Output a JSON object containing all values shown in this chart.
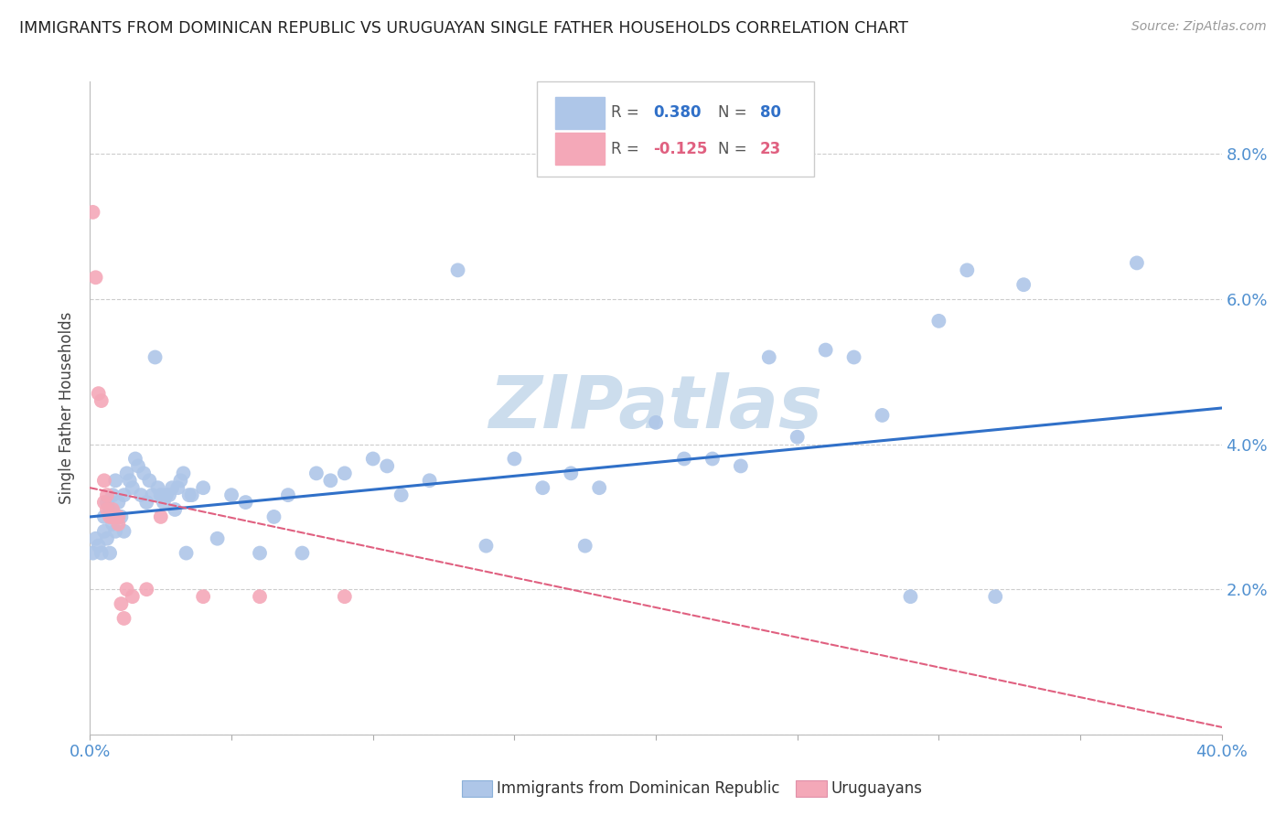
{
  "title": "IMMIGRANTS FROM DOMINICAN REPUBLIC VS URUGUAYAN SINGLE FATHER HOUSEHOLDS CORRELATION CHART",
  "source": "Source: ZipAtlas.com",
  "ylabel": "Single Father Households",
  "xlim": [
    0.0,
    0.4
  ],
  "ylim": [
    0.0,
    0.09
  ],
  "yticks": [
    0.0,
    0.02,
    0.04,
    0.06,
    0.08
  ],
  "ytick_labels": [
    "",
    "2.0%",
    "4.0%",
    "6.0%",
    "8.0%"
  ],
  "blue_R": "0.380",
  "blue_N": "80",
  "pink_R": "-0.125",
  "pink_N": "23",
  "blue_color": "#aec6e8",
  "pink_color": "#f4a8b8",
  "blue_line_color": "#3070c8",
  "pink_line_color": "#e06080",
  "grid_color": "#cccccc",
  "axis_color": "#5090d0",
  "watermark_color": "#ccdded",
  "blue_scatter": [
    [
      0.001,
      0.025
    ],
    [
      0.002,
      0.027
    ],
    [
      0.003,
      0.026
    ],
    [
      0.004,
      0.025
    ],
    [
      0.005,
      0.028
    ],
    [
      0.005,
      0.03
    ],
    [
      0.006,
      0.027
    ],
    [
      0.006,
      0.032
    ],
    [
      0.007,
      0.031
    ],
    [
      0.007,
      0.025
    ],
    [
      0.008,
      0.029
    ],
    [
      0.008,
      0.033
    ],
    [
      0.009,
      0.028
    ],
    [
      0.009,
      0.035
    ],
    [
      0.01,
      0.032
    ],
    [
      0.01,
      0.03
    ],
    [
      0.011,
      0.03
    ],
    [
      0.012,
      0.033
    ],
    [
      0.012,
      0.028
    ],
    [
      0.013,
      0.036
    ],
    [
      0.014,
      0.035
    ],
    [
      0.015,
      0.034
    ],
    [
      0.016,
      0.038
    ],
    [
      0.017,
      0.037
    ],
    [
      0.018,
      0.033
    ],
    [
      0.019,
      0.036
    ],
    [
      0.02,
      0.032
    ],
    [
      0.021,
      0.035
    ],
    [
      0.022,
      0.033
    ],
    [
      0.023,
      0.052
    ],
    [
      0.024,
      0.034
    ],
    [
      0.025,
      0.033
    ],
    [
      0.026,
      0.032
    ],
    [
      0.027,
      0.033
    ],
    [
      0.028,
      0.033
    ],
    [
      0.029,
      0.034
    ],
    [
      0.03,
      0.031
    ],
    [
      0.031,
      0.034
    ],
    [
      0.032,
      0.035
    ],
    [
      0.033,
      0.036
    ],
    [
      0.034,
      0.025
    ],
    [
      0.035,
      0.033
    ],
    [
      0.036,
      0.033
    ],
    [
      0.04,
      0.034
    ],
    [
      0.045,
      0.027
    ],
    [
      0.05,
      0.033
    ],
    [
      0.055,
      0.032
    ],
    [
      0.06,
      0.025
    ],
    [
      0.065,
      0.03
    ],
    [
      0.07,
      0.033
    ],
    [
      0.075,
      0.025
    ],
    [
      0.08,
      0.036
    ],
    [
      0.085,
      0.035
    ],
    [
      0.09,
      0.036
    ],
    [
      0.1,
      0.038
    ],
    [
      0.105,
      0.037
    ],
    [
      0.11,
      0.033
    ],
    [
      0.12,
      0.035
    ],
    [
      0.13,
      0.064
    ],
    [
      0.14,
      0.026
    ],
    [
      0.15,
      0.038
    ],
    [
      0.16,
      0.034
    ],
    [
      0.17,
      0.036
    ],
    [
      0.175,
      0.026
    ],
    [
      0.18,
      0.034
    ],
    [
      0.2,
      0.043
    ],
    [
      0.21,
      0.038
    ],
    [
      0.22,
      0.038
    ],
    [
      0.23,
      0.037
    ],
    [
      0.24,
      0.052
    ],
    [
      0.25,
      0.041
    ],
    [
      0.26,
      0.053
    ],
    [
      0.27,
      0.052
    ],
    [
      0.28,
      0.044
    ],
    [
      0.29,
      0.019
    ],
    [
      0.3,
      0.057
    ],
    [
      0.31,
      0.064
    ],
    [
      0.32,
      0.019
    ],
    [
      0.33,
      0.062
    ],
    [
      0.37,
      0.065
    ]
  ],
  "pink_scatter": [
    [
      0.001,
      0.072
    ],
    [
      0.002,
      0.063
    ],
    [
      0.003,
      0.047
    ],
    [
      0.004,
      0.046
    ],
    [
      0.005,
      0.035
    ],
    [
      0.005,
      0.032
    ],
    [
      0.006,
      0.033
    ],
    [
      0.006,
      0.031
    ],
    [
      0.007,
      0.03
    ],
    [
      0.008,
      0.031
    ],
    [
      0.008,
      0.03
    ],
    [
      0.009,
      0.03
    ],
    [
      0.01,
      0.029
    ],
    [
      0.01,
      0.03
    ],
    [
      0.011,
      0.018
    ],
    [
      0.012,
      0.016
    ],
    [
      0.013,
      0.02
    ],
    [
      0.015,
      0.019
    ],
    [
      0.02,
      0.02
    ],
    [
      0.025,
      0.03
    ],
    [
      0.04,
      0.019
    ],
    [
      0.06,
      0.019
    ],
    [
      0.09,
      0.019
    ]
  ],
  "blue_trend": [
    0.0,
    0.03,
    0.4,
    0.045
  ],
  "pink_trend": [
    0.0,
    0.034,
    0.4,
    0.001
  ],
  "bottom_legend_blue": "Immigrants from Dominican Republic",
  "bottom_legend_pink": "Uruguayans"
}
